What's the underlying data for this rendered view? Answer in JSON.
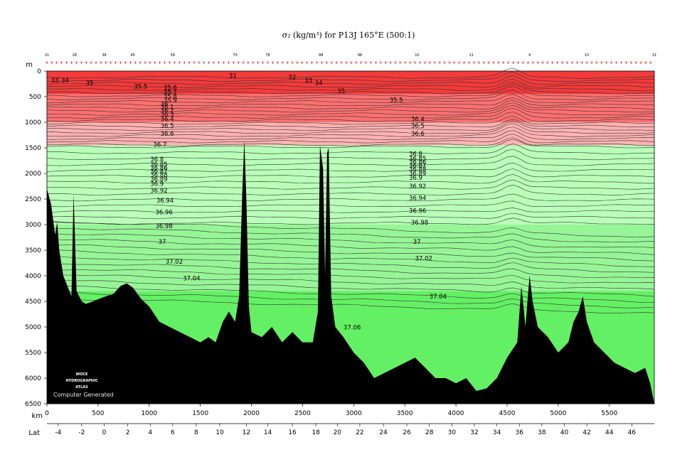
{
  "chart_data": {
    "type": "contour-section",
    "title": "σ₂ (kg/m³) for P13J 165°E (500:1)",
    "y_axis": {
      "label": "m",
      "range": [
        0,
        6500
      ],
      "inverted": true,
      "ticks": [
        0,
        500,
        1000,
        1500,
        2000,
        2500,
        3000,
        3500,
        4000,
        4500,
        5000,
        5500,
        6000,
        6500
      ]
    },
    "x_axis": {
      "label": "km",
      "range": [
        0,
        5940
      ],
      "ticks": [
        0,
        500,
        1000,
        1500,
        2000,
        2500,
        3000,
        3500,
        4000,
        4500,
        5000,
        5500
      ]
    },
    "lat_axis": {
      "label": "Lat",
      "ticks": [
        {
          "label": "-4",
          "km": 110
        },
        {
          "label": "-2",
          "km": 340
        },
        {
          "label": "0",
          "km": 560
        },
        {
          "label": "2",
          "km": 790
        },
        {
          "label": "4",
          "km": 1010
        },
        {
          "label": "6",
          "km": 1230
        },
        {
          "label": "8",
          "km": 1460
        },
        {
          "label": "10",
          "km": 1690
        },
        {
          "label": "12",
          "km": 1950
        },
        {
          "label": "14",
          "km": 2160
        },
        {
          "label": "16",
          "km": 2400
        },
        {
          "label": "18",
          "km": 2630
        },
        {
          "label": "20",
          "km": 2840
        },
        {
          "label": "22",
          "km": 3060
        },
        {
          "label": "24",
          "km": 3290
        },
        {
          "label": "26",
          "km": 3520
        },
        {
          "label": "28",
          "km": 3740
        },
        {
          "label": "30",
          "km": 3960
        },
        {
          "label": "32",
          "km": 4180
        },
        {
          "label": "34",
          "km": 4400
        },
        {
          "label": "36",
          "km": 4620
        },
        {
          "label": "38",
          "km": 4840
        },
        {
          "label": "40",
          "km": 5060
        },
        {
          "label": "42",
          "km": 5280
        },
        {
          "label": "44",
          "km": 5500
        },
        {
          "label": "46",
          "km": 5720
        }
      ]
    },
    "stations_top": [
      {
        "label": "21",
        "km": 0
      },
      {
        "label": "28",
        "km": 270
      },
      {
        "label": "38",
        "km": 560
      },
      {
        "label": "45",
        "km": 840
      },
      {
        "label": "58",
        "km": 1230
      },
      {
        "label": "70",
        "km": 1840
      },
      {
        "label": "78",
        "km": 2160
      },
      {
        "label": "88",
        "km": 2680
      },
      {
        "label": "98",
        "km": 3060
      },
      {
        "label": "10",
        "km": 3620
      },
      {
        "label": "11",
        "km": 4150
      },
      {
        "label": "4",
        "km": 4720
      },
      {
        "label": "15",
        "km": 5280
      },
      {
        "label": "21",
        "km": 5940
      }
    ],
    "contour_levels_labeled": [
      "31",
      "32",
      "33",
      "34",
      "35",
      "35.5",
      "35.6",
      "35.7",
      "35.8",
      "35.9",
      "36",
      "36.1",
      "36.2",
      "36.3",
      "36.4",
      "36.5",
      "36.6",
      "36.7",
      "36.8",
      "36.85",
      "36.86",
      "36.87",
      "36.88",
      "36.89",
      "36.9",
      "36.92",
      "36.94",
      "36.96",
      "36.98",
      "37",
      "37.02",
      "37.04",
      "37.06"
    ],
    "contour_labels": [
      {
        "text": "33",
        "km": 40,
        "depth": 180
      },
      {
        "text": "34",
        "km": 140,
        "depth": 180
      },
      {
        "text": "35",
        "km": 380,
        "depth": 230
      },
      {
        "text": "35.5",
        "km": 850,
        "depth": 300
      },
      {
        "text": "35.6",
        "km": 1140,
        "depth": 320
      },
      {
        "text": "35.7",
        "km": 1140,
        "depth": 410
      },
      {
        "text": "35.8",
        "km": 1140,
        "depth": 490
      },
      {
        "text": "35.9",
        "km": 1140,
        "depth": 570
      },
      {
        "text": "36",
        "km": 1110,
        "depth": 640
      },
      {
        "text": "36.1",
        "km": 1110,
        "depth": 700
      },
      {
        "text": "36.2",
        "km": 1110,
        "depth": 770
      },
      {
        "text": "36.3",
        "km": 1110,
        "depth": 850
      },
      {
        "text": "36.4",
        "km": 1110,
        "depth": 940
      },
      {
        "text": "36.5",
        "km": 1110,
        "depth": 1070
      },
      {
        "text": "36.6",
        "km": 1110,
        "depth": 1220
      },
      {
        "text": "36.7",
        "km": 1040,
        "depth": 1440
      },
      {
        "text": "31",
        "km": 1780,
        "depth": 90
      },
      {
        "text": "32",
        "km": 2360,
        "depth": 120
      },
      {
        "text": "33",
        "km": 2520,
        "depth": 180
      },
      {
        "text": "34",
        "km": 2620,
        "depth": 230
      },
      {
        "text": "35",
        "km": 2840,
        "depth": 390
      },
      {
        "text": "35.5",
        "km": 3350,
        "depth": 560
      },
      {
        "text": "36.4",
        "km": 3560,
        "depth": 940
      },
      {
        "text": "36.5",
        "km": 3560,
        "depth": 1070
      },
      {
        "text": "36.6",
        "km": 3560,
        "depth": 1220
      },
      {
        "text": "36.8",
        "km": 1010,
        "depth": 1720
      },
      {
        "text": "36.85",
        "km": 1010,
        "depth": 1820
      },
      {
        "text": "36.86",
        "km": 1010,
        "depth": 1890
      },
      {
        "text": "36.87",
        "km": 1010,
        "depth": 1960
      },
      {
        "text": "36.88",
        "km": 1010,
        "depth": 2030
      },
      {
        "text": "36.89",
        "km": 1010,
        "depth": 2110
      },
      {
        "text": "36.9",
        "km": 1010,
        "depth": 2200
      },
      {
        "text": "36.92",
        "km": 1010,
        "depth": 2330
      },
      {
        "text": "36.94",
        "km": 1070,
        "depth": 2530
      },
      {
        "text": "36.96",
        "km": 1060,
        "depth": 2760
      },
      {
        "text": "36.98",
        "km": 1060,
        "depth": 3030
      },
      {
        "text": "37",
        "km": 1090,
        "depth": 3330
      },
      {
        "text": "37.02",
        "km": 1160,
        "depth": 3720
      },
      {
        "text": "37.04",
        "km": 1330,
        "depth": 4050
      },
      {
        "text": "36.8",
        "km": 3540,
        "depth": 1620
      },
      {
        "text": "36.85",
        "km": 3540,
        "depth": 1710
      },
      {
        "text": "36.86",
        "km": 3540,
        "depth": 1780
      },
      {
        "text": "36.87",
        "km": 3540,
        "depth": 1850
      },
      {
        "text": "36.88",
        "km": 3540,
        "depth": 1920
      },
      {
        "text": "36.89",
        "km": 3540,
        "depth": 2000
      },
      {
        "text": "36.9",
        "km": 3540,
        "depth": 2080
      },
      {
        "text": "36.92",
        "km": 3540,
        "depth": 2250
      },
      {
        "text": "36.94",
        "km": 3540,
        "depth": 2480
      },
      {
        "text": "36.96",
        "km": 3540,
        "depth": 2730
      },
      {
        "text": "36.98",
        "km": 3560,
        "depth": 2960
      },
      {
        "text": "37",
        "km": 3580,
        "depth": 3330
      },
      {
        "text": "37.02",
        "km": 3600,
        "depth": 3660
      },
      {
        "text": "37.04",
        "km": 3740,
        "depth": 4400
      },
      {
        "text": "37.06",
        "km": 2900,
        "depth": 5010
      }
    ],
    "shading": [
      {
        "range": "<36.7",
        "depth_top": 0,
        "depth_bottom": 1450,
        "colors": [
          "#f43a3a",
          "#ff7070",
          "#ffb2b2"
        ]
      },
      {
        "range": ">=36.7",
        "depth_top": 1450,
        "depth_bottom": 6500,
        "colors": [
          "#b9ffb9",
          "#97f597",
          "#64f064"
        ]
      }
    ],
    "bathymetry_depth_m": [
      [
        0,
        2300
      ],
      [
        40,
        2600
      ],
      [
        80,
        3200
      ],
      [
        100,
        2950
      ],
      [
        120,
        3500
      ],
      [
        160,
        4000
      ],
      [
        200,
        4200
      ],
      [
        240,
        4400
      ],
      [
        260,
        2400
      ],
      [
        290,
        4300
      ],
      [
        340,
        4500
      ],
      [
        380,
        4550
      ],
      [
        450,
        4500
      ],
      [
        550,
        4420
      ],
      [
        650,
        4350
      ],
      [
        720,
        4200
      ],
      [
        780,
        4150
      ],
      [
        840,
        4230
      ],
      [
        920,
        4450
      ],
      [
        1000,
        4600
      ],
      [
        1100,
        4900
      ],
      [
        1200,
        5000
      ],
      [
        1300,
        5100
      ],
      [
        1400,
        5200
      ],
      [
        1500,
        5300
      ],
      [
        1580,
        5200
      ],
      [
        1650,
        5300
      ],
      [
        1720,
        4900
      ],
      [
        1780,
        4700
      ],
      [
        1840,
        4900
      ],
      [
        1880,
        4400
      ],
      [
        1910,
        2400
      ],
      [
        1930,
        1350
      ],
      [
        1950,
        2500
      ],
      [
        1975,
        4600
      ],
      [
        2000,
        5100
      ],
      [
        2100,
        5200
      ],
      [
        2200,
        5000
      ],
      [
        2300,
        5300
      ],
      [
        2400,
        5100
      ],
      [
        2500,
        5300
      ],
      [
        2600,
        5300
      ],
      [
        2650,
        4700
      ],
      [
        2670,
        1450
      ],
      [
        2700,
        1900
      ],
      [
        2720,
        4000
      ],
      [
        2740,
        1600
      ],
      [
        2755,
        1500
      ],
      [
        2780,
        4400
      ],
      [
        2820,
        5000
      ],
      [
        2900,
        5200
      ],
      [
        3000,
        5500
      ],
      [
        3100,
        5700
      ],
      [
        3200,
        6000
      ],
      [
        3300,
        5900
      ],
      [
        3400,
        5800
      ],
      [
        3500,
        5700
      ],
      [
        3600,
        5600
      ],
      [
        3700,
        5800
      ],
      [
        3800,
        6000
      ],
      [
        3900,
        6000
      ],
      [
        4000,
        6100
      ],
      [
        4100,
        6000
      ],
      [
        4200,
        6250
      ],
      [
        4300,
        6200
      ],
      [
        4400,
        6000
      ],
      [
        4500,
        5600
      ],
      [
        4600,
        5300
      ],
      [
        4640,
        4200
      ],
      [
        4680,
        5000
      ],
      [
        4720,
        4000
      ],
      [
        4750,
        4500
      ],
      [
        4800,
        5000
      ],
      [
        4900,
        5200
      ],
      [
        5000,
        5500
      ],
      [
        5100,
        5300
      ],
      [
        5150,
        4900
      ],
      [
        5200,
        4700
      ],
      [
        5240,
        4400
      ],
      [
        5280,
        4900
      ],
      [
        5350,
        5300
      ],
      [
        5450,
        5500
      ],
      [
        5550,
        5700
      ],
      [
        5650,
        5800
      ],
      [
        5750,
        5900
      ],
      [
        5850,
        5800
      ],
      [
        5900,
        6100
      ],
      [
        5940,
        6500
      ]
    ]
  },
  "watermark": {
    "lines": [
      "WOCE",
      "HYDROGRAPHIC",
      "ATLAS"
    ],
    "footer": "Computer Generated"
  },
  "colors": {
    "red_dark": "#f43a3a",
    "red_mid": "#ff7070",
    "red_light": "#ffb2b2",
    "green_light": "#b9ffb9",
    "green_mid": "#97f597",
    "green_dark": "#64f064",
    "seafloor": "#000000"
  }
}
